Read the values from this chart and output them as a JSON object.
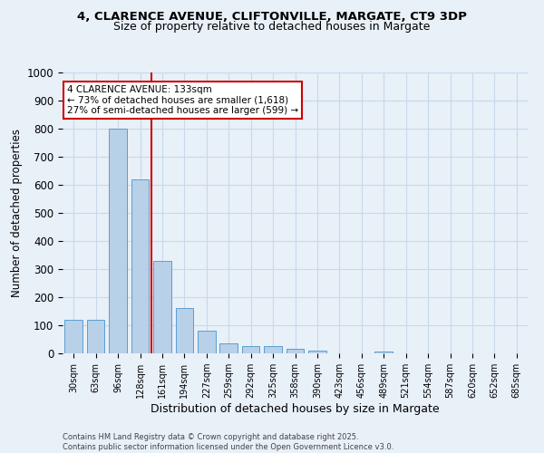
{
  "title_line1": "4, CLARENCE AVENUE, CLIFTONVILLE, MARGATE, CT9 3DP",
  "title_line2": "Size of property relative to detached houses in Margate",
  "xlabel": "Distribution of detached houses by size in Margate",
  "ylabel": "Number of detached properties",
  "categories": [
    "30sqm",
    "63sqm",
    "96sqm",
    "128sqm",
    "161sqm",
    "194sqm",
    "227sqm",
    "259sqm",
    "292sqm",
    "325sqm",
    "358sqm",
    "390sqm",
    "423sqm",
    "456sqm",
    "489sqm",
    "521sqm",
    "554sqm",
    "587sqm",
    "620sqm",
    "652sqm",
    "685sqm"
  ],
  "values": [
    120,
    120,
    800,
    620,
    330,
    160,
    80,
    35,
    25,
    25,
    15,
    10,
    0,
    0,
    5,
    0,
    0,
    0,
    0,
    0,
    0
  ],
  "bar_color": "#b8d0e8",
  "bar_edgecolor": "#5a9fd4",
  "grid_color": "#c8d8ec",
  "background_color": "#e8f0f8",
  "annotation_text": "4 CLARENCE AVENUE: 133sqm\n← 73% of detached houses are smaller (1,618)\n27% of semi-detached houses are larger (599) →",
  "annotation_box_color": "#ffffff",
  "annotation_box_edgecolor": "#cc0000",
  "footer_line1": "Contains HM Land Registry data © Crown copyright and database right 2025.",
  "footer_line2": "Contains public sector information licensed under the Open Government Licence v3.0.",
  "ylim": [
    0,
    1000
  ],
  "yticks": [
    0,
    100,
    200,
    300,
    400,
    500,
    600,
    700,
    800,
    900,
    1000
  ],
  "red_line_index": 3.5
}
